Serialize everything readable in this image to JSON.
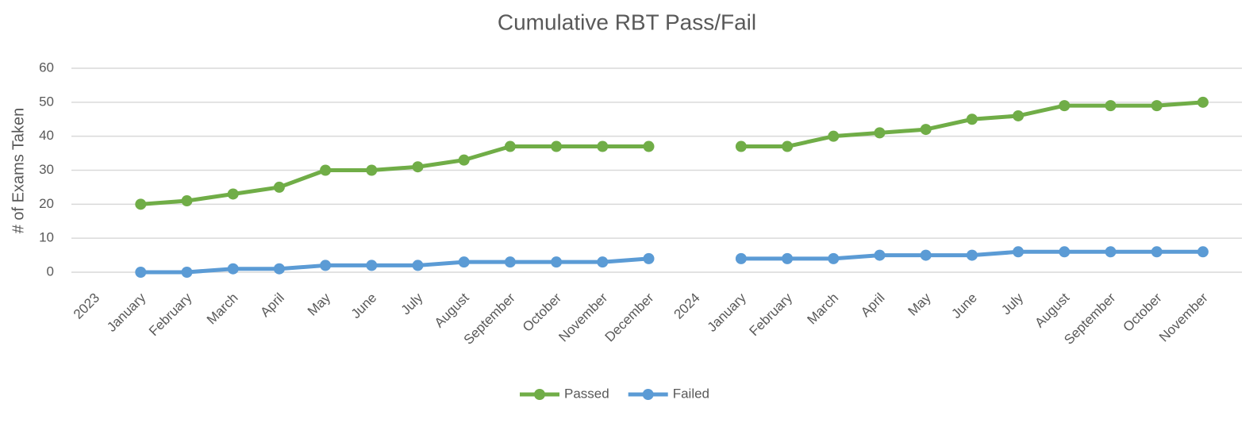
{
  "chart_data": {
    "type": "line",
    "title": "Cumulative RBT Pass/Fail",
    "y_label": "# of Exams Taken",
    "categories": [
      "2023",
      "January",
      "February",
      "March",
      "April",
      "May",
      "June",
      "July",
      "August",
      "September",
      "October",
      "November",
      "December",
      "2024",
      "January",
      "February",
      "March",
      "April",
      "May",
      "June",
      "July",
      "August",
      "September",
      "October",
      "November"
    ],
    "series": [
      {
        "name": "Passed",
        "color": "#70ad47",
        "values": [
          null,
          20,
          21,
          23,
          25,
          30,
          30,
          31,
          33,
          37,
          37,
          37,
          37,
          null,
          37,
          37,
          40,
          41,
          42,
          45,
          46,
          49,
          49,
          49,
          50
        ]
      },
      {
        "name": "Failed",
        "color": "#5b9bd5",
        "values": [
          null,
          0,
          0,
          1,
          1,
          2,
          2,
          2,
          3,
          3,
          3,
          3,
          4,
          null,
          4,
          4,
          4,
          5,
          5,
          5,
          6,
          6,
          6,
          6,
          6
        ]
      }
    ],
    "ylim": [
      0,
      60
    ],
    "yticks": [
      0,
      10,
      20,
      30,
      40,
      50,
      60
    ],
    "grid": true,
    "legend": "bottom"
  }
}
